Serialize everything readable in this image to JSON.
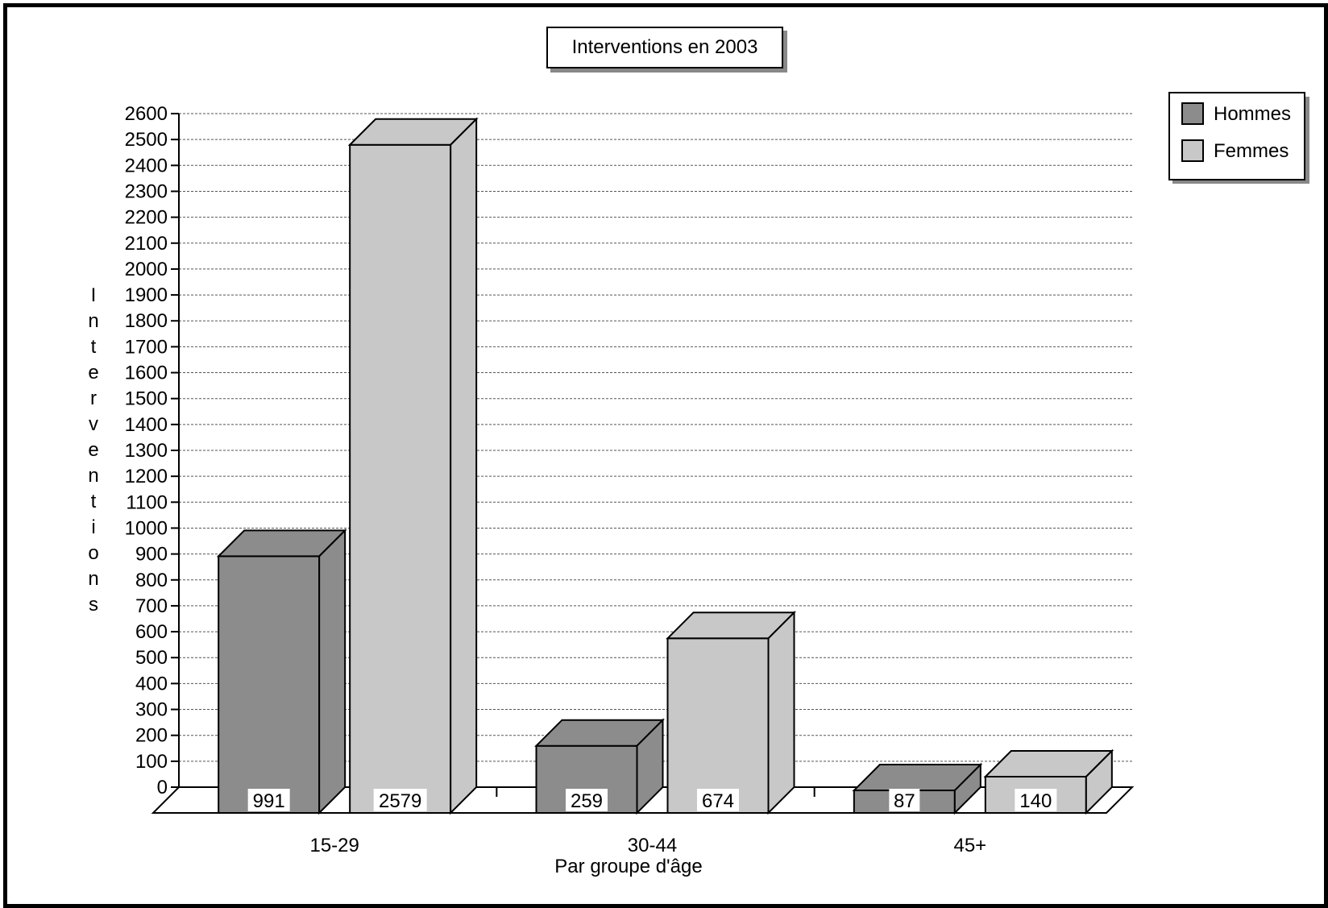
{
  "chart_data": {
    "type": "bar",
    "title": "Interventions en 2003",
    "xlabel": "Par groupe d'âge",
    "ylabel": "Interventions",
    "categories": [
      "15-29",
      "30-44",
      "45+"
    ],
    "series": [
      {
        "name": "Hommes",
        "values": [
          991,
          259,
          87
        ],
        "color": "#8c8c8c"
      },
      {
        "name": "Femmes",
        "values": [
          2579,
          674,
          140
        ],
        "color": "#c8c8c8"
      }
    ],
    "ylim": [
      0,
      2600
    ],
    "ytick_step": 100,
    "grid": true,
    "legend_position": "top-right",
    "three_d": true
  }
}
